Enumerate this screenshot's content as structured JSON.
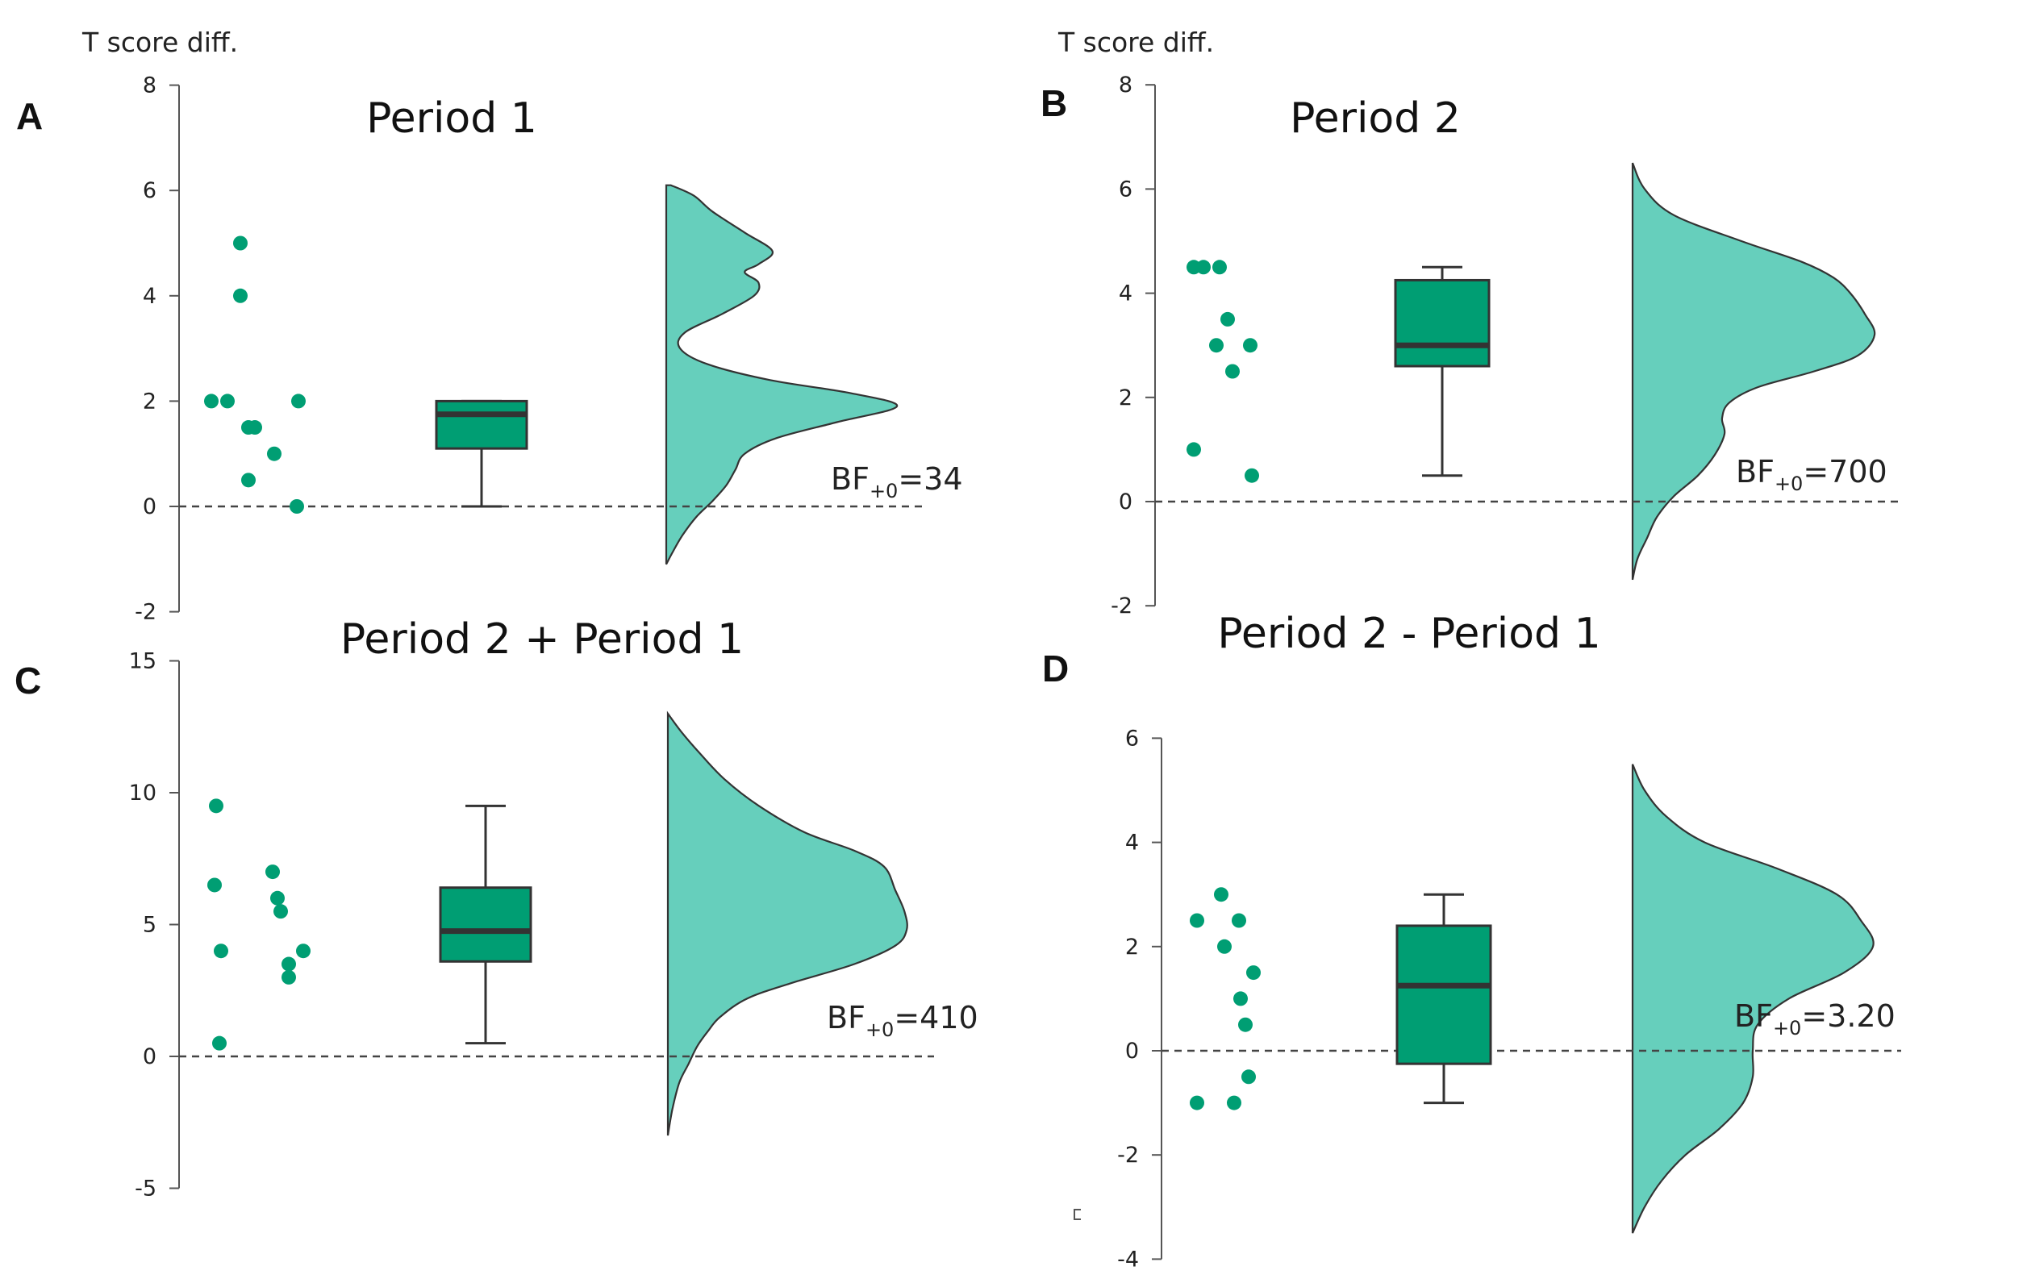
{
  "colors": {
    "accent": "#009e73",
    "density_fill": "#66cfbc",
    "box_fill": "#009e73",
    "outline": "#333333"
  },
  "ylabel": "T score diff.",
  "chart_data": [
    {
      "type": "raincloud",
      "panel": "A",
      "title": "Period 1",
      "ylabel": "T score diff.",
      "ylim": [
        -2,
        8
      ],
      "yticks": [
        -2,
        0,
        2,
        4,
        6,
        8
      ],
      "points": [
        2,
        2,
        5,
        4,
        1.5,
        1.5,
        0.5,
        1,
        2,
        0
      ],
      "box": {
        "whisker_low": 0,
        "q1": 1.1,
        "median": 1.75,
        "q3": 2,
        "whisker_high": 2
      },
      "density": {
        "y_min": -1.1,
        "y_max": 6.1,
        "shape": [
          [
            6.1,
            0.02
          ],
          [
            5.9,
            0.12
          ],
          [
            5.6,
            0.2
          ],
          [
            5.2,
            0.34
          ],
          [
            4.85,
            0.46
          ],
          [
            4.6,
            0.4
          ],
          [
            4.45,
            0.34
          ],
          [
            4.25,
            0.4
          ],
          [
            4.0,
            0.38
          ],
          [
            3.65,
            0.24
          ],
          [
            3.3,
            0.08
          ],
          [
            3.0,
            0.06
          ],
          [
            2.7,
            0.18
          ],
          [
            2.4,
            0.45
          ],
          [
            2.15,
            0.8
          ],
          [
            1.9,
            1.0
          ],
          [
            1.6,
            0.74
          ],
          [
            1.3,
            0.48
          ],
          [
            1.0,
            0.34
          ],
          [
            0.7,
            0.3
          ],
          [
            0.4,
            0.26
          ],
          [
            0.1,
            0.2
          ],
          [
            -0.2,
            0.13
          ],
          [
            -0.55,
            0.07
          ],
          [
            -0.85,
            0.03
          ],
          [
            -1.1,
            0.0
          ]
        ]
      },
      "bf_label": {
        "prefix": "BF",
        "sub": "+0",
        "value": "=34"
      }
    },
    {
      "type": "raincloud",
      "panel": "B",
      "title": "Period 2",
      "ylabel": "T score diff.",
      "ylim": [
        -2,
        8
      ],
      "yticks": [
        -2,
        0,
        2,
        4,
        6,
        8
      ],
      "points": [
        4.5,
        4.5,
        4.5,
        3.5,
        3,
        3,
        2.5,
        1,
        0.5
      ],
      "box": {
        "whisker_low": 0.5,
        "q1": 2.6,
        "median": 3,
        "q3": 4.25,
        "whisker_high": 4.5
      },
      "density": {
        "y_min": -1.5,
        "y_max": 6.5,
        "shape": [
          [
            6.5,
            0.0
          ],
          [
            6.0,
            0.05
          ],
          [
            5.5,
            0.17
          ],
          [
            5.0,
            0.45
          ],
          [
            4.6,
            0.7
          ],
          [
            4.3,
            0.83
          ],
          [
            4.0,
            0.9
          ],
          [
            3.6,
            0.96
          ],
          [
            3.2,
            1.0
          ],
          [
            2.8,
            0.93
          ],
          [
            2.5,
            0.75
          ],
          [
            2.2,
            0.52
          ],
          [
            1.9,
            0.4
          ],
          [
            1.6,
            0.37
          ],
          [
            1.3,
            0.38
          ],
          [
            0.9,
            0.34
          ],
          [
            0.5,
            0.27
          ],
          [
            0.1,
            0.17
          ],
          [
            -0.3,
            0.1
          ],
          [
            -0.7,
            0.06
          ],
          [
            -1.1,
            0.02
          ],
          [
            -1.5,
            0.0
          ]
        ]
      },
      "bf_label": {
        "prefix": "BF",
        "sub": "+0",
        "value": "=700"
      }
    },
    {
      "type": "raincloud",
      "panel": "C",
      "title": "Period 2 + Period 1",
      "ylabel": "",
      "ylim": [
        -5,
        15
      ],
      "yticks": [
        -5,
        0,
        5,
        10,
        15
      ],
      "points": [
        9.5,
        6.5,
        4,
        0.5,
        7,
        6,
        5.5,
        4,
        3.5,
        3
      ],
      "box": {
        "whisker_low": 0.5,
        "q1": 3.6,
        "median": 4.75,
        "q3": 6.4,
        "whisker_high": 9.5
      },
      "density": {
        "y_min": -3,
        "y_max": 13,
        "shape": [
          [
            13,
            0.0
          ],
          [
            12.3,
            0.06
          ],
          [
            11.5,
            0.14
          ],
          [
            10.5,
            0.25
          ],
          [
            9.5,
            0.4
          ],
          [
            8.5,
            0.6
          ],
          [
            7.8,
            0.82
          ],
          [
            7.2,
            0.95
          ],
          [
            6.3,
            1.0
          ],
          [
            5.5,
            1.04
          ],
          [
            4.8,
            1.05
          ],
          [
            4.2,
            1.0
          ],
          [
            3.5,
            0.82
          ],
          [
            2.8,
            0.55
          ],
          [
            2.2,
            0.35
          ],
          [
            1.5,
            0.23
          ],
          [
            1.0,
            0.18
          ],
          [
            0.4,
            0.13
          ],
          [
            -0.3,
            0.09
          ],
          [
            -1.0,
            0.05
          ],
          [
            -2.0,
            0.02
          ],
          [
            -3.0,
            0.0
          ]
        ]
      },
      "bf_label": {
        "prefix": "BF",
        "sub": "+0",
        "value": "=410"
      }
    },
    {
      "type": "raincloud",
      "panel": "D",
      "title": "Period 2 - Period 1",
      "ylabel": "",
      "ylim": [
        -4,
        6
      ],
      "yticks": [
        -4,
        -2,
        0,
        2,
        4,
        6
      ],
      "points": [
        2.5,
        -1,
        3,
        2.5,
        2,
        -1,
        1.5,
        1,
        0.5,
        -0.5
      ],
      "box": {
        "whisker_low": -1,
        "q1": -0.25,
        "median": 1.25,
        "q3": 2.4,
        "whisker_high": 3
      },
      "density": {
        "y_min": -3.5,
        "y_max": 5.5,
        "shape": [
          [
            5.5,
            0.0
          ],
          [
            5.0,
            0.05
          ],
          [
            4.5,
            0.14
          ],
          [
            4.0,
            0.3
          ],
          [
            3.5,
            0.6
          ],
          [
            3.0,
            0.85
          ],
          [
            2.5,
            0.95
          ],
          [
            2.0,
            1.0
          ],
          [
            1.5,
            0.88
          ],
          [
            1.0,
            0.65
          ],
          [
            0.5,
            0.52
          ],
          [
            0.0,
            0.5
          ],
          [
            -0.5,
            0.5
          ],
          [
            -1.0,
            0.46
          ],
          [
            -1.5,
            0.36
          ],
          [
            -2.0,
            0.22
          ],
          [
            -2.5,
            0.12
          ],
          [
            -3.0,
            0.05
          ],
          [
            -3.5,
            0.0
          ]
        ]
      },
      "bf_label": {
        "prefix": "BF",
        "sub": "+0",
        "value": "=3.20"
      }
    }
  ]
}
